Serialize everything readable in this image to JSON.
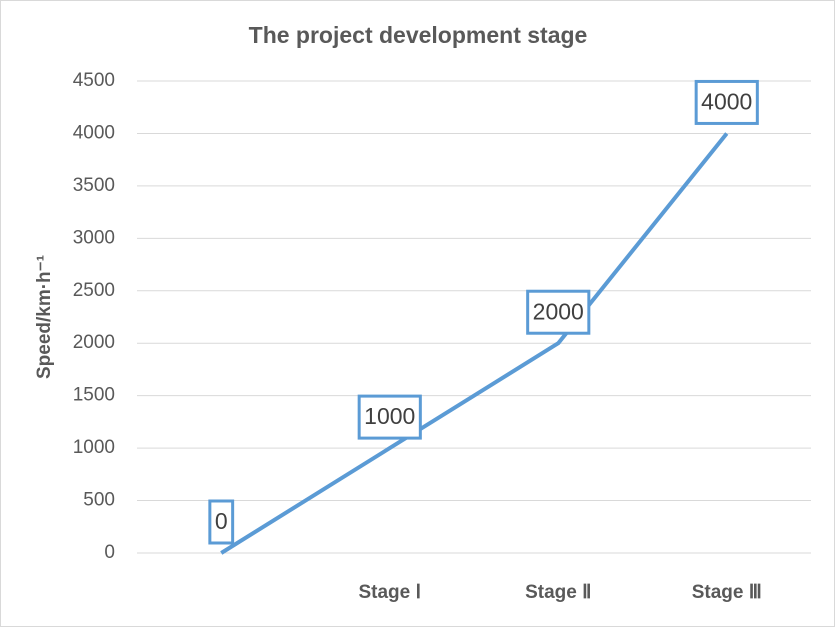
{
  "chart_data": {
    "type": "line",
    "title": "The project development stage",
    "ylabel": "Speed/km·h⁻¹",
    "categories": [
      null,
      "Stage Ⅰ",
      "Stage Ⅱ",
      "Stage Ⅲ"
    ],
    "values": [
      0,
      1000,
      2000,
      4000
    ],
    "color": "#5b9bd5",
    "ylim": [
      0,
      4500
    ],
    "yticks": [
      0,
      500,
      1000,
      1500,
      2000,
      2500,
      3000,
      3500,
      4000,
      4500
    ],
    "grid": true
  }
}
